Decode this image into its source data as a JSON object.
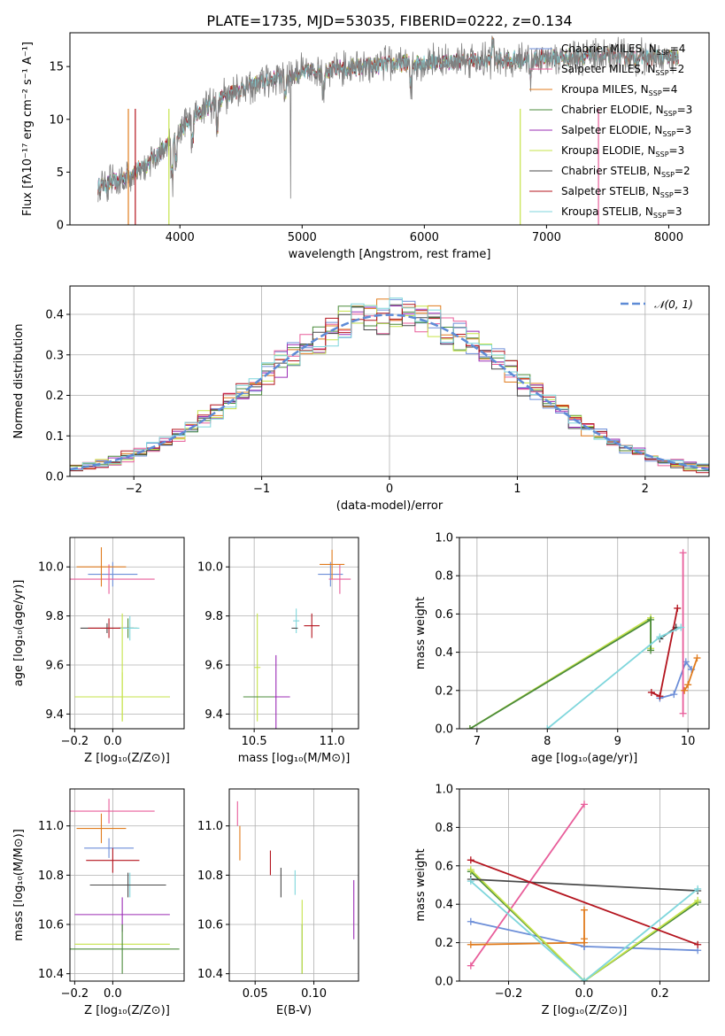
{
  "figure_title": "PLATE=1735, MJD=53035, FIBERID=0222, z=0.134",
  "colors": {
    "spectrum": "#808080",
    "gaussian": "#5e8bd6",
    "grid": "#b0b0b0",
    "models": [
      "#6c8ed8",
      "#e85d9a",
      "#e07b1d",
      "#4b8b3b",
      "#9b2cb5",
      "#c6e34a",
      "#4a4a4a",
      "#b4141e",
      "#7fd6dc"
    ]
  },
  "chart_data": [
    {
      "id": "spectrum",
      "type": "line",
      "xlabel": "wavelength [Angstrom, rest frame]",
      "ylabel": "Flux [fλ10⁻¹⁷ erg cm⁻² s⁻¹ A⁻¹]",
      "xlim": [
        3100,
        8330
      ],
      "ylim": [
        0,
        18.2
      ],
      "xticks": [
        4000,
        5000,
        6000,
        7000,
        8000
      ],
      "yticks": [
        0,
        5,
        10,
        15
      ],
      "grid": false,
      "legend_position": "upper-right",
      "legend": [
        "Chabrier MILES, N_SSP=4",
        "Salpeter MILES, N_SSP=2",
        "Kroupa MILES, N_SSP=4",
        "Chabrier ELODIE, N_SSP=3",
        "Salpeter ELODIE, N_SSP=3",
        "Kroupa ELODIE, N_SSP=3",
        "Chabrier STELIB, N_SSP=2",
        "Salpeter STELIB, N_SSP=3",
        "Kroupa STELIB, N_SSP=3"
      ],
      "continuum": {
        "x": [
          3300,
          3500,
          3700,
          3900,
          4000,
          4200,
          4400,
          4600,
          4800,
          5000,
          5200,
          5500,
          5800,
          6200,
          6600,
          7000,
          7400,
          7800,
          8000,
          8200
        ],
        "y": [
          3.5,
          4.2,
          5.5,
          7.5,
          9.0,
          11.0,
          12.5,
          13.3,
          13.9,
          14.4,
          14.7,
          15.0,
          15.3,
          15.5,
          15.6,
          15.8,
          16.0,
          15.9,
          15.8,
          15.7
        ]
      }
    },
    {
      "id": "residuals",
      "type": "histogram",
      "xlabel": "(data-model)/error",
      "ylabel": "Normed distribution",
      "xlim": [
        -2.5,
        2.5
      ],
      "ylim": [
        0,
        0.47
      ],
      "xticks": [
        -2,
        -1,
        0,
        1,
        2
      ],
      "yticks": [
        0.0,
        0.1,
        0.2,
        0.3,
        0.4
      ],
      "grid": true,
      "legend_position": "upper-right",
      "legend": [
        "𝒩(0, 1)"
      ],
      "bin_width": 0.1
    },
    {
      "id": "age-vs-Z",
      "type": "scatter",
      "xlabel": "Z [log₁₀(Z/Z⊙)]",
      "ylabel": "age  [log₁₀(age/yr)]",
      "xlim": [
        -0.225,
        0.375
      ],
      "ylim": [
        9.34,
        10.12
      ],
      "xticks": [
        -0.2,
        0.0
      ],
      "yticks": [
        9.4,
        9.6,
        9.8,
        10.0
      ],
      "grid": true,
      "points": [
        {
          "series": 0,
          "x": 0.0,
          "y": 9.97,
          "xerr": 0.13,
          "yerr": 0.05
        },
        {
          "series": 1,
          "x": -0.02,
          "y": 9.95,
          "xerr": 0.24,
          "yerr": 0.06
        },
        {
          "series": 2,
          "x": -0.06,
          "y": 10.0,
          "xerr": 0.13,
          "yerr": 0.08
        },
        {
          "series": 3,
          "x": 0.08,
          "y": 9.75,
          "xerr": 0.05,
          "yerr": 0.04
        },
        {
          "series": 4,
          "x": 0.05,
          "y": 9.47,
          "xerr": 0.25,
          "yerr": 0.0
        },
        {
          "series": 5,
          "x": 0.05,
          "y": 9.47,
          "xerr": 0.25,
          "yerr": 0.1
        },
        {
          "series": 6,
          "x": -0.03,
          "y": 9.75,
          "xerr": 0.14,
          "yerr": 0.02
        },
        {
          "series": 7,
          "x": -0.02,
          "y": 9.75,
          "xerr": 0.11,
          "yerr": 0.04
        },
        {
          "series": 8,
          "x": 0.09,
          "y": 9.75,
          "xerr": 0.05,
          "yerr": 0.05
        },
        {
          "series": 5,
          "x": 0.05,
          "y": 9.59,
          "xerr": 0.0,
          "yerr": 0.22
        }
      ]
    },
    {
      "id": "age-vs-mass",
      "type": "scatter",
      "xlabel": "mass [log₁₀(M/M⊙)]",
      "ylabel": "",
      "xlim": [
        10.34,
        11.17
      ],
      "ylim": [
        9.34,
        10.12
      ],
      "xticks": [
        10.5,
        11.0
      ],
      "yticks": [
        9.4,
        9.6,
        9.8,
        10.0
      ],
      "grid": true,
      "points": [
        {
          "series": 0,
          "x": 10.99,
          "y": 9.97,
          "xerr": 0.08,
          "yerr": 0.05
        },
        {
          "series": 1,
          "x": 11.05,
          "y": 9.95,
          "xerr": 0.07,
          "yerr": 0.06
        },
        {
          "series": 2,
          "x": 11.0,
          "y": 10.01,
          "xerr": 0.08,
          "yerr": 0.06
        },
        {
          "series": 4,
          "x": 10.64,
          "y": 9.47,
          "xerr": 0.09,
          "yerr": 0.17
        },
        {
          "series": 5,
          "x": 10.52,
          "y": 9.59,
          "xerr": 0.02,
          "yerr": 0.22
        },
        {
          "series": 3,
          "x": 10.53,
          "y": 9.47,
          "xerr": 0.1,
          "yerr": 0.0
        },
        {
          "series": 7,
          "x": 10.87,
          "y": 9.76,
          "xerr": 0.05,
          "yerr": 0.05
        },
        {
          "series": 8,
          "x": 10.77,
          "y": 9.78,
          "xerr": 0.02,
          "yerr": 0.05
        },
        {
          "series": 6,
          "x": 10.76,
          "y": 9.75,
          "xerr": 0.02,
          "yerr": 0.0
        }
      ]
    },
    {
      "id": "weight-vs-age",
      "type": "line",
      "xlabel": "age  [log₁₀(age/yr)]",
      "ylabel": "mass weight",
      "xlim": [
        6.75,
        10.3
      ],
      "ylim": [
        0,
        1
      ],
      "xticks": [
        7,
        8,
        9,
        10
      ],
      "yticks": [
        0.0,
        0.2,
        0.4,
        0.6,
        0.8,
        1.0
      ],
      "grid": true,
      "series": [
        {
          "color": 0,
          "x": [
            9.6,
            9.8,
            9.97,
            10.05
          ],
          "y": [
            0.16,
            0.18,
            0.35,
            0.31
          ]
        },
        {
          "color": 1,
          "x": [
            9.93,
            9.93
          ],
          "y": [
            0.08,
            0.92
          ]
        },
        {
          "color": 2,
          "x": [
            9.95,
            10.0,
            10.13
          ],
          "y": [
            0.2,
            0.23,
            0.37
          ]
        },
        {
          "color": 5,
          "x": [
            6.9,
            9.47,
            9.47
          ],
          "y": [
            0.0,
            0.58,
            0.42
          ]
        },
        {
          "color": 3,
          "x": [
            6.9,
            9.47,
            9.47
          ],
          "y": [
            0.0,
            0.57,
            0.41
          ]
        },
        {
          "color": 6,
          "x": [
            9.6,
            9.83
          ],
          "y": [
            0.47,
            0.53
          ]
        },
        {
          "color": 7,
          "x": [
            9.48,
            9.6,
            9.85
          ],
          "y": [
            0.19,
            0.17,
            0.63
          ]
        },
        {
          "color": 8,
          "x": [
            8.0,
            9.6,
            9.9
          ],
          "y": [
            0.0,
            0.48,
            0.53
          ]
        }
      ]
    },
    {
      "id": "mass-vs-Z",
      "type": "scatter",
      "xlabel": "Z [log₁₀(Z/Z⊙)]",
      "ylabel": "mass [log₁₀(M/M⊙)]",
      "xlim": [
        -0.225,
        0.375
      ],
      "ylim": [
        10.37,
        11.15
      ],
      "xticks": [
        -0.2,
        0.0
      ],
      "yticks": [
        10.4,
        10.6,
        10.8,
        11.0
      ],
      "grid": true,
      "points": [
        {
          "series": 1,
          "x": -0.02,
          "y": 11.06,
          "xerr": 0.24,
          "yerr": 0.05
        },
        {
          "series": 2,
          "x": -0.06,
          "y": 10.99,
          "xerr": 0.13,
          "yerr": 0.06
        },
        {
          "series": 0,
          "x": -0.02,
          "y": 10.91,
          "xerr": 0.13,
          "yerr": 0.04
        },
        {
          "series": 7,
          "x": 0.0,
          "y": 10.86,
          "xerr": 0.14,
          "yerr": 0.05
        },
        {
          "series": 8,
          "x": 0.09,
          "y": 10.76,
          "xerr": 0.14,
          "yerr": 0.05
        },
        {
          "series": 6,
          "x": 0.08,
          "y": 10.76,
          "xerr": 0.2,
          "yerr": 0.05
        },
        {
          "series": 4,
          "x": 0.05,
          "y": 10.64,
          "xerr": 0.25,
          "yerr": 0.07
        },
        {
          "series": 5,
          "x": 0.05,
          "y": 10.52,
          "xerr": 0.25,
          "yerr": 0.0
        },
        {
          "series": 3,
          "x": 0.05,
          "y": 10.5,
          "xerr": 0.3,
          "yerr": 0.1
        }
      ]
    },
    {
      "id": "mass-vs-EBV",
      "type": "scatter",
      "xlabel": "E(B-V)",
      "ylabel": "",
      "xlim": [
        0.028,
        0.138
      ],
      "ylim": [
        10.37,
        11.15
      ],
      "xticks": [
        0.05,
        0.1
      ],
      "yticks": [
        10.4,
        10.6,
        10.8,
        11.0
      ],
      "grid": true,
      "points": [
        {
          "series": 1,
          "x": 0.035,
          "y": 11.05,
          "xerr": 0.0,
          "yerr": 0.05
        },
        {
          "series": 2,
          "x": 0.037,
          "y": 10.93,
          "xerr": 0.0,
          "yerr": 0.07
        },
        {
          "series": 7,
          "x": 0.063,
          "y": 10.85,
          "xerr": 0.0,
          "yerr": 0.05
        },
        {
          "series": 6,
          "x": 0.072,
          "y": 10.77,
          "xerr": 0.0,
          "yerr": 0.06
        },
        {
          "series": 8,
          "x": 0.084,
          "y": 10.77,
          "xerr": 0.0,
          "yerr": 0.05
        },
        {
          "series": 3,
          "x": 0.09,
          "y": 10.5,
          "xerr": 0.0,
          "yerr": 0.1
        },
        {
          "series": 5,
          "x": 0.09,
          "y": 10.55,
          "xerr": 0.0,
          "yerr": 0.15
        },
        {
          "series": 4,
          "x": 0.134,
          "y": 10.66,
          "xerr": 0.0,
          "yerr": 0.12
        }
      ]
    },
    {
      "id": "weight-vs-Z",
      "type": "line",
      "xlabel": "Z [log₁₀(Z/Z⊙)]",
      "ylabel": "mass weight",
      "xlim": [
        -0.33,
        0.33
      ],
      "ylim": [
        0,
        1
      ],
      "xticks": [
        -0.2,
        0.0,
        0.2
      ],
      "yticks": [
        0.0,
        0.2,
        0.4,
        0.6,
        0.8,
        1.0
      ],
      "grid": true,
      "series": [
        {
          "color": 0,
          "x": [
            -0.3,
            0.0,
            0.0,
            0.0,
            0.3
          ],
          "y": [
            0.31,
            0.18,
            0.18,
            0.18,
            0.16
          ]
        },
        {
          "color": 1,
          "x": [
            -0.3,
            0.0
          ],
          "y": [
            0.08,
            0.92
          ]
        },
        {
          "color": 2,
          "x": [
            -0.3,
            0.0,
            0.0,
            0.0
          ],
          "y": [
            0.19,
            0.2,
            0.37,
            0.22
          ]
        },
        {
          "color": 3,
          "x": [
            -0.3,
            0.0,
            0.3
          ],
          "y": [
            0.57,
            0.0,
            0.41
          ]
        },
        {
          "color": 5,
          "x": [
            -0.3,
            0.0,
            0.3
          ],
          "y": [
            0.58,
            0.0,
            0.42
          ]
        },
        {
          "color": 6,
          "x": [
            -0.3,
            0.3
          ],
          "y": [
            0.53,
            0.47
          ]
        },
        {
          "color": 7,
          "x": [
            -0.3,
            0.3
          ],
          "y": [
            0.63,
            0.19
          ]
        },
        {
          "color": 8,
          "x": [
            -0.3,
            0.0,
            0.3
          ],
          "y": [
            0.52,
            0.0,
            0.48
          ]
        }
      ]
    }
  ]
}
